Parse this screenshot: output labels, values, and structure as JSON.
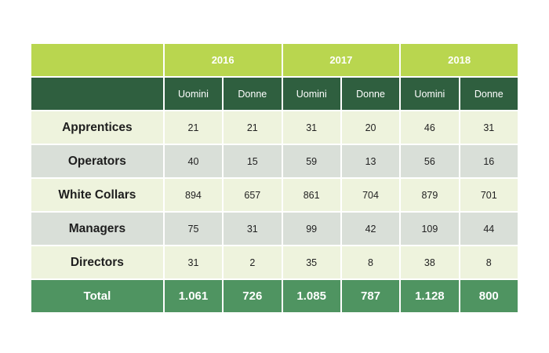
{
  "table": {
    "years": [
      "2016",
      "2017",
      "2018"
    ],
    "sub_headers": [
      "Uomini",
      "Donne",
      "Uomini",
      "Donne",
      "Uomini",
      "Donne"
    ],
    "rows": [
      {
        "label": "Apprentices",
        "values": [
          "21",
          "21",
          "31",
          "20",
          "46",
          "31"
        ]
      },
      {
        "label": "Operators",
        "values": [
          "40",
          "15",
          "59",
          "13",
          "56",
          "16"
        ]
      },
      {
        "label": "White Collars",
        "values": [
          "894",
          "657",
          "861",
          "704",
          "879",
          "701"
        ]
      },
      {
        "label": "Managers",
        "values": [
          "75",
          "31",
          "99",
          "42",
          "109",
          "44"
        ]
      },
      {
        "label": "Directors",
        "values": [
          "31",
          "2",
          "35",
          "8",
          "38",
          "8"
        ]
      }
    ],
    "total": {
      "label": "Total",
      "values": [
        "1.061",
        "726",
        "1.085",
        "787",
        "1.128",
        "800"
      ]
    }
  },
  "colors": {
    "year_header": "#b9d64f",
    "sub_header": "#2f5f3f",
    "row_light": "#eef3dd",
    "row_grey": "#d9dfd8",
    "total_row": "#4f9461"
  }
}
